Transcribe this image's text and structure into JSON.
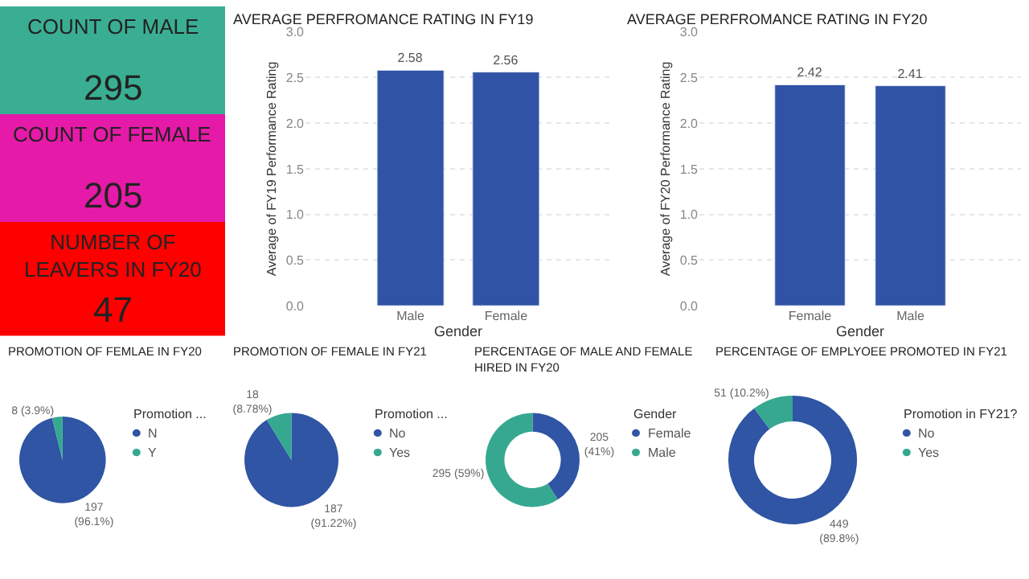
{
  "chart_data": [
    {
      "type": "other",
      "title": "COUNT OF MALE",
      "annotations": [
        "295"
      ],
      "color": "#3aae93"
    },
    {
      "type": "other",
      "title": "COUNT OF FEMALE",
      "annotations": [
        "205"
      ],
      "color": "#e61aa8"
    },
    {
      "type": "other",
      "title": "NUMBER OF\nLEAVERS IN FY20",
      "annotations": [
        "47"
      ],
      "color": "#fe0000"
    },
    {
      "type": "bar",
      "title": "AVERAGE PERFROMANCE RATING IN FY19",
      "xlabel": "Gender",
      "ylabel": "Average of FY19 Performance Rating",
      "categories": [
        "Male",
        "Female"
      ],
      "values": [
        2.58,
        2.56
      ],
      "color": "#3053a5",
      "ylim": [
        0,
        3
      ],
      "yticks": [
        {
          "value": 0,
          "label": "0.0"
        },
        0.5,
        {
          "value": 1,
          "label": "1.0"
        },
        1.5,
        {
          "value": 2,
          "label": "2.0"
        },
        2.5,
        {
          "value": 3,
          "label": "3.0"
        }
      ],
      "grid": "y",
      "data_labels": true,
      "legend": false
    },
    {
      "type": "bar",
      "title": "AVERAGE PERFROMANCE RATING IN FY20",
      "xlabel": "Gender",
      "ylabel": "Average of FY20 Performance Rating",
      "categories": [
        "Female",
        "Male"
      ],
      "values": [
        2.42,
        2.41
      ],
      "color": "#3053a5",
      "ylim": [
        0,
        3
      ],
      "yticks": [
        {
          "value": 0,
          "label": "0.0"
        },
        0.5,
        {
          "value": 1,
          "label": "1.0"
        },
        1.5,
        {
          "value": 2,
          "label": "2.0"
        },
        2.5,
        {
          "value": 3,
          "label": "3.0"
        }
      ],
      "grid": "y",
      "data_labels": true,
      "legend": false
    },
    {
      "type": "pie",
      "title": "PROMOTION OF FEMLAE IN FY20",
      "legend_title": "Promotion ...",
      "categories": [
        "N",
        "Y"
      ],
      "values": [
        197,
        8
      ],
      "colors": [
        "#2f55a4",
        "#35a88f"
      ],
      "value_labels": [
        "197\n(96.1%)",
        "8 (3.9%)"
      ],
      "legend": "right"
    },
    {
      "type": "pie",
      "title": "PROMOTION OF FEMALE IN FY21",
      "legend_title": "Promotion ...",
      "categories": [
        "No",
        "Yes"
      ],
      "values": [
        187,
        18
      ],
      "colors": [
        "#2f55a4",
        "#35a88f"
      ],
      "value_labels": [
        "187\n(91.22%)",
        "18\n(8.78%)"
      ],
      "legend": "right"
    },
    {
      "type": "donut",
      "title": "PERCENTAGE OF MALE AND FEMALE\nHIRED IN FY20",
      "legend_title": "Gender",
      "categories": [
        "Female",
        "Male"
      ],
      "values": [
        205,
        295
      ],
      "colors": [
        "#2f55a4",
        "#35a88f"
      ],
      "value_labels": [
        "205\n(41%)",
        "295 (59%)"
      ],
      "legend": "right"
    },
    {
      "type": "donut",
      "title": "PERCENTAGE OF EMPLYOEE PROMOTED IN FY21",
      "legend_title": "Promotion in FY21?",
      "categories": [
        "No",
        "Yes"
      ],
      "values": [
        449,
        51
      ],
      "colors": [
        "#2f55a4",
        "#35a88f"
      ],
      "value_labels": [
        "449\n(89.8%)",
        "51 (10.2%)"
      ],
      "legend": "right"
    }
  ]
}
